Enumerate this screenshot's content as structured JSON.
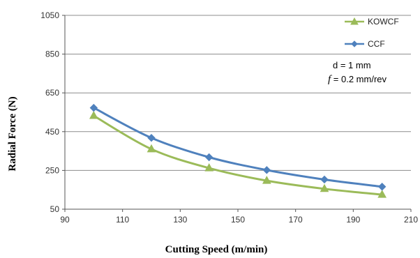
{
  "chart_data": {
    "type": "line",
    "title": "",
    "xlabel": "Cutting Speed (m/min)",
    "ylabel": "Radial Force (N)",
    "xlim": [
      90,
      210
    ],
    "ylim": [
      50,
      1050
    ],
    "xticks": [
      90,
      110,
      130,
      150,
      170,
      190,
      210
    ],
    "yticks": [
      50,
      250,
      450,
      650,
      850,
      1050
    ],
    "grid": "horizontal",
    "legend_position": "top-right",
    "x": [
      100,
      120,
      140,
      160,
      180,
      200
    ],
    "series": [
      {
        "name": "KOWCF",
        "color": "#9bbb59",
        "marker": "triangle",
        "values": [
          532,
          360,
          262,
          197,
          155,
          125
        ]
      },
      {
        "name": "CCF",
        "color": "#4f81bd",
        "marker": "diamond",
        "values": [
          573,
          418,
          318,
          252,
          203,
          166
        ]
      }
    ],
    "annotations": {
      "depth_label": "d = 1 mm",
      "feed_symbol": "f",
      "feed_value": " = 0.2 mm/rev"
    }
  }
}
